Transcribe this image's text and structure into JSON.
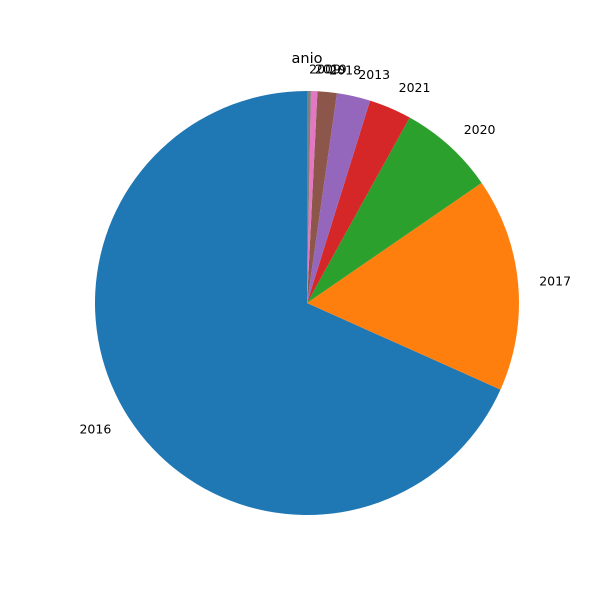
{
  "chart_data": {
    "type": "pie",
    "title": "anio",
    "start_angle": 90,
    "direction": "counterclockwise",
    "legend": "none",
    "slices": [
      {
        "label": "2016",
        "value": 69.6,
        "color": "#1f77b4"
      },
      {
        "label": "2017",
        "value": 16.6,
        "color": "#ff7f0e"
      },
      {
        "label": "2020",
        "value": 7.5,
        "color": "#2ca02c"
      },
      {
        "label": "2021",
        "value": 3.3,
        "color": "#d62728"
      },
      {
        "label": "2013",
        "value": 2.6,
        "color": "#9467bd"
      },
      {
        "label": "2018",
        "value": 1.5,
        "color": "#8c564b"
      },
      {
        "label": "2019",
        "value": 0.5,
        "color": "#e377c2"
      },
      {
        "label": "2009",
        "value": 0.3,
        "color": "#7f7f7f"
      }
    ]
  }
}
